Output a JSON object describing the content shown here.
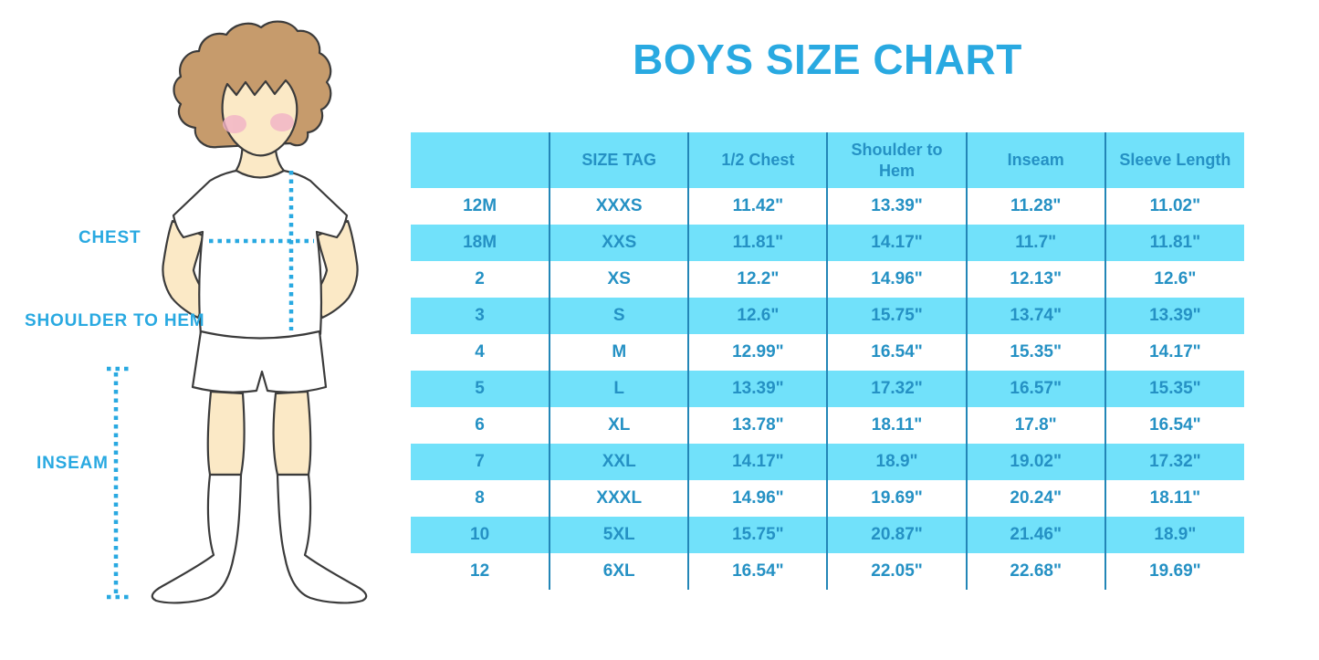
{
  "title": "BOYS SIZE CHART",
  "colors": {
    "accent": "#29A9E1",
    "band": "#71E1FA",
    "divider": "#2386B7",
    "table_text": "#2591C4"
  },
  "figure": {
    "labels": {
      "chest": "CHEST",
      "shoulder_to_hem": "SHOULDER TO HEM",
      "inseam": "INSEAM"
    }
  },
  "table": {
    "headers": [
      "",
      "SIZE TAG",
      "1/2 Chest",
      "Shoulder to Hem",
      "Inseam",
      "Sleeve Length"
    ],
    "rows": [
      [
        "12M",
        "XXXS",
        "11.42\"",
        "13.39\"",
        "11.28\"",
        "11.02\""
      ],
      [
        "18M",
        "XXS",
        "11.81\"",
        "14.17\"",
        "11.7\"",
        "11.81\""
      ],
      [
        "2",
        "XS",
        "12.2\"",
        "14.96\"",
        "12.13\"",
        "12.6\""
      ],
      [
        "3",
        "S",
        "12.6\"",
        "15.75\"",
        "13.74\"",
        "13.39\""
      ],
      [
        "4",
        "M",
        "12.99\"",
        "16.54\"",
        "15.35\"",
        "14.17\""
      ],
      [
        "5",
        "L",
        "13.39\"",
        "17.32\"",
        "16.57\"",
        "15.35\""
      ],
      [
        "6",
        "XL",
        "13.78\"",
        "18.11\"",
        "17.8\"",
        "16.54\""
      ],
      [
        "7",
        "XXL",
        "14.17\"",
        "18.9\"",
        "19.02\"",
        "17.32\""
      ],
      [
        "8",
        "XXXL",
        "14.96\"",
        "19.69\"",
        "20.24\"",
        "18.11\""
      ],
      [
        "10",
        "5XL",
        "15.75\"",
        "20.87\"",
        "21.46\"",
        "18.9\""
      ],
      [
        "12",
        "6XL",
        "16.54\"",
        "22.05\"",
        "22.68\"",
        "19.69\""
      ]
    ]
  }
}
